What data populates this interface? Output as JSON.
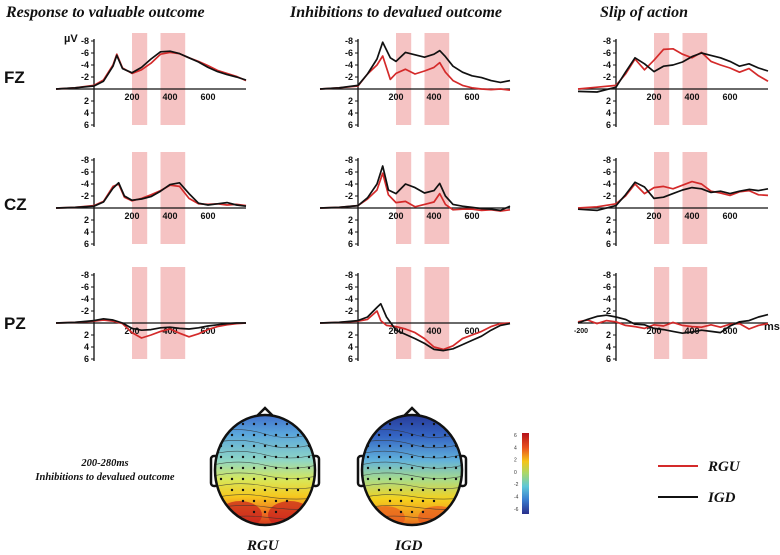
{
  "chart_data": {
    "type": "line",
    "unit_label": "µV",
    "time_unit": "ms",
    "y_range": [
      6,
      -8
    ],
    "y_ticks": [
      "-8",
      "-6",
      "-4",
      "-2",
      "2",
      "4",
      "6"
    ],
    "y_tick_values": [
      -8,
      -6,
      -4,
      -2,
      2,
      4,
      6
    ],
    "x_range": [
      -200,
      800
    ],
    "x_ticks": [
      "200",
      "400",
      "600"
    ],
    "x_tick_values": [
      200,
      400,
      600
    ],
    "x_start_label": "-200",
    "x_start_value": -200,
    "highlight_windows_ms": [
      [
        200,
        280
      ],
      [
        350,
        480
      ]
    ],
    "columns": [
      {
        "title": "Response to valuable outcome"
      },
      {
        "title": "Inhibitions to devalued outcome"
      },
      {
        "title": "Slip of action"
      }
    ],
    "rows": [
      "FZ",
      "CZ",
      "PZ"
    ],
    "series_colors": {
      "RGU": "#d42a2a",
      "IGD": "#111111"
    },
    "legend": [
      {
        "name": "RGU",
        "color": "#d42a2a"
      },
      {
        "name": "IGD",
        "color": "#111111"
      }
    ],
    "panels": [
      {
        "col": 0,
        "row": "FZ",
        "RGU": {
          "x": [
            -200,
            -100,
            0,
            50,
            100,
            120,
            150,
            200,
            250,
            300,
            350,
            400,
            450,
            500,
            550,
            600,
            650,
            700,
            750,
            800
          ],
          "y": [
            0,
            -0.2,
            -0.6,
            -1.5,
            -4,
            -5.8,
            -3.5,
            -2.6,
            -3.2,
            -4.3,
            -5.8,
            -6.1,
            -5.9,
            -5.2,
            -4.6,
            -3.9,
            -3.1,
            -2.6,
            -2.1,
            -1.4
          ]
        },
        "IGD": {
          "x": [
            -200,
            -100,
            0,
            50,
            100,
            120,
            150,
            200,
            250,
            300,
            350,
            400,
            450,
            500,
            550,
            600,
            650,
            700,
            750,
            800
          ],
          "y": [
            0,
            -0.2,
            -0.5,
            -1.3,
            -3.8,
            -5.6,
            -3.4,
            -2.7,
            -3.6,
            -5.0,
            -6.2,
            -6.3,
            -5.9,
            -5.2,
            -4.5,
            -3.6,
            -2.9,
            -2.4,
            -2.0,
            -1.5
          ]
        }
      },
      {
        "col": 1,
        "row": "FZ",
        "RGU": {
          "x": [
            -200,
            -100,
            0,
            50,
            100,
            130,
            170,
            200,
            250,
            300,
            350,
            400,
            430,
            460,
            500,
            550,
            600,
            650,
            700,
            750,
            800
          ],
          "y": [
            0,
            -0.2,
            -0.5,
            -2.5,
            -4,
            -5.5,
            -1.6,
            -2.6,
            -3.3,
            -2.5,
            -3.0,
            -3.6,
            -4.4,
            -2.8,
            -1.4,
            -0.6,
            -0.2,
            0,
            0.1,
            0,
            0.2
          ]
        },
        "IGD": {
          "x": [
            -200,
            -100,
            0,
            50,
            100,
            130,
            170,
            200,
            250,
            300,
            350,
            400,
            430,
            460,
            500,
            550,
            600,
            650,
            700,
            750,
            800
          ],
          "y": [
            0,
            -0.2,
            -0.6,
            -2.5,
            -5,
            -7.8,
            -5.2,
            -4.6,
            -6.1,
            -5.7,
            -5.3,
            -5.8,
            -6.4,
            -5.4,
            -3.8,
            -2.8,
            -2.2,
            -1.9,
            -1.4,
            -1.1,
            -1.4
          ]
        }
      },
      {
        "col": 2,
        "row": "FZ",
        "RGU": {
          "x": [
            -200,
            -100,
            0,
            50,
            100,
            150,
            200,
            250,
            300,
            350,
            400,
            450,
            500,
            550,
            600,
            650,
            700,
            750,
            800
          ],
          "y": [
            0,
            -0.3,
            -0.6,
            -2.5,
            -5,
            -3.2,
            -4.8,
            -6.6,
            -6.7,
            -5.8,
            -5.2,
            -6.1,
            -4.6,
            -4.0,
            -3.5,
            -2.8,
            -3.4,
            -2.2,
            -1.3
          ]
        },
        "IGD": {
          "x": [
            -200,
            -100,
            0,
            50,
            100,
            150,
            200,
            250,
            300,
            350,
            400,
            450,
            500,
            550,
            600,
            650,
            700,
            750,
            800
          ],
          "y": [
            0.4,
            0.5,
            -0.3,
            -2.8,
            -5.2,
            -4.2,
            -2.9,
            -3.8,
            -4.0,
            -4.5,
            -5.4,
            -6.0,
            -5.6,
            -5.2,
            -4.6,
            -3.8,
            -4.2,
            -3.5,
            -3.0
          ]
        }
      },
      {
        "col": 0,
        "row": "CZ",
        "RGU": {
          "x": [
            -200,
            -100,
            0,
            50,
            100,
            130,
            160,
            200,
            250,
            300,
            350,
            400,
            450,
            500,
            550,
            600,
            650,
            700,
            750,
            800
          ],
          "y": [
            0,
            -0.1,
            -0.4,
            -1.1,
            -3.6,
            -4.0,
            -1.8,
            -1.2,
            -1.6,
            -2.2,
            -2.9,
            -3.8,
            -3.6,
            -1.6,
            -0.7,
            -0.6,
            -0.7,
            -0.5,
            -0.6,
            -0.4
          ]
        },
        "IGD": {
          "x": [
            -200,
            -100,
            0,
            50,
            100,
            130,
            160,
            200,
            250,
            300,
            350,
            400,
            450,
            500,
            550,
            600,
            650,
            700,
            750,
            800
          ],
          "y": [
            0,
            -0.1,
            -0.3,
            -1.0,
            -3.3,
            -4.2,
            -2.0,
            -1.3,
            -1.5,
            -1.9,
            -2.8,
            -3.9,
            -4.2,
            -2.4,
            -0.8,
            -0.5,
            -0.7,
            -0.9,
            -0.5,
            -0.3
          ]
        }
      },
      {
        "col": 1,
        "row": "CZ",
        "RGU": {
          "x": [
            -200,
            -100,
            0,
            50,
            100,
            130,
            160,
            200,
            250,
            300,
            350,
            400,
            430,
            460,
            500,
            550,
            600,
            650,
            700,
            750,
            800
          ],
          "y": [
            0,
            -0.1,
            -0.4,
            -1.5,
            -3,
            -5.8,
            -2.2,
            -0.9,
            -1.1,
            -0.2,
            -0.6,
            -1.0,
            -2.4,
            -0.6,
            0.3,
            0.2,
            0.2,
            0.4,
            0.3,
            0.5,
            0.3
          ]
        },
        "IGD": {
          "x": [
            -200,
            -100,
            0,
            50,
            100,
            130,
            160,
            200,
            250,
            300,
            350,
            400,
            430,
            460,
            500,
            550,
            600,
            650,
            700,
            750,
            800
          ],
          "y": [
            0,
            -0.1,
            -0.4,
            -1.7,
            -4,
            -7.0,
            -3.0,
            -2.4,
            -4.0,
            -3.4,
            -2.5,
            -2.9,
            -4.1,
            -2.0,
            -0.6,
            -0.3,
            -0.1,
            0.1,
            0.2,
            0.4,
            -0.3
          ]
        }
      },
      {
        "col": 2,
        "row": "CZ",
        "RGU": {
          "x": [
            -200,
            -100,
            0,
            50,
            100,
            150,
            200,
            250,
            300,
            350,
            400,
            450,
            500,
            550,
            600,
            650,
            700,
            750,
            800
          ],
          "y": [
            0,
            -0.2,
            -0.7,
            -2.0,
            -4.0,
            -2.4,
            -3.4,
            -3.6,
            -3.2,
            -3.8,
            -4.4,
            -4.0,
            -2.8,
            -2.5,
            -2.1,
            -2.7,
            -2.9,
            -2.2,
            -2.1
          ]
        },
        "IGD": {
          "x": [
            -200,
            -100,
            0,
            50,
            100,
            150,
            200,
            250,
            300,
            350,
            400,
            450,
            500,
            550,
            600,
            650,
            700,
            750,
            800
          ],
          "y": [
            0.2,
            0.4,
            -0.4,
            -2.2,
            -4.3,
            -3.5,
            -1.6,
            -1.8,
            -2.4,
            -3.0,
            -3.4,
            -3.2,
            -2.6,
            -2.8,
            -2.4,
            -2.8,
            -3.1,
            -2.9,
            -3.2
          ]
        }
      },
      {
        "col": 0,
        "row": "PZ",
        "RGU": {
          "x": [
            -200,
            -100,
            0,
            50,
            100,
            150,
            200,
            250,
            300,
            350,
            400,
            450,
            500,
            550,
            600,
            650,
            700,
            750,
            800
          ],
          "y": [
            0,
            -0.1,
            -0.3,
            -0.5,
            -0.3,
            0.1,
            1.6,
            2.5,
            2.0,
            1.4,
            1.0,
            1.7,
            2.3,
            1.8,
            1.1,
            0.6,
            0.3,
            0.1,
            0
          ]
        },
        "IGD": {
          "x": [
            -200,
            -100,
            0,
            50,
            100,
            150,
            200,
            250,
            300,
            350,
            400,
            450,
            500,
            550,
            600,
            650,
            700,
            750,
            800
          ],
          "y": [
            0,
            -0.1,
            -0.4,
            -0.7,
            -0.5,
            0,
            0.9,
            1.2,
            1.1,
            0.8,
            0.7,
            0.9,
            1.0,
            0.8,
            0.5,
            0.3,
            0.1,
            0,
            0
          ]
        }
      },
      {
        "col": 1,
        "row": "PZ",
        "RGU": {
          "x": [
            -200,
            -100,
            0,
            50,
            100,
            120,
            150,
            200,
            250,
            300,
            350,
            400,
            450,
            500,
            550,
            600,
            650,
            700,
            750,
            800
          ],
          "y": [
            0,
            -0.1,
            -0.3,
            -0.6,
            -2.0,
            -0.4,
            0.4,
            0.6,
            1.0,
            1.6,
            2.6,
            4.0,
            4.4,
            3.8,
            2.6,
            2.0,
            1.4,
            0.6,
            0.1,
            0
          ]
        },
        "IGD": {
          "x": [
            -200,
            -100,
            0,
            50,
            100,
            120,
            150,
            200,
            250,
            300,
            350,
            400,
            450,
            500,
            550,
            600,
            650,
            700,
            750,
            800
          ],
          "y": [
            0,
            -0.1,
            -0.4,
            -1.0,
            -2.6,
            -3.2,
            -1.0,
            1.2,
            1.9,
            2.6,
            3.4,
            4.4,
            4.6,
            4.3,
            3.6,
            2.9,
            2.2,
            1.2,
            0.4,
            0.1
          ]
        }
      },
      {
        "col": 2,
        "row": "PZ",
        "RGU": {
          "x": [
            -200,
            -150,
            -100,
            -50,
            0,
            50,
            100,
            150,
            200,
            250,
            300,
            350,
            400,
            450,
            500,
            550,
            600,
            650,
            700,
            750,
            800
          ],
          "y": [
            -0.2,
            -0.5,
            0.1,
            -0.4,
            -0.2,
            0.4,
            0.6,
            0.9,
            0.3,
            0.5,
            -0.1,
            0.4,
            0.6,
            0.7,
            0.3,
            0.7,
            0.2,
            0.1,
            1.0,
            0.4,
            0.1
          ]
        },
        "IGD": {
          "x": [
            -200,
            -150,
            -100,
            -50,
            0,
            50,
            100,
            150,
            200,
            250,
            300,
            350,
            400,
            450,
            500,
            550,
            600,
            650,
            700,
            750,
            800
          ],
          "y": [
            0,
            -0.6,
            -1.1,
            -1.3,
            -1.0,
            -0.6,
            0.2,
            0.3,
            0.9,
            1.1,
            1.4,
            1.7,
            1.5,
            1.2,
            1.4,
            1.6,
            0.5,
            -0.2,
            -0.4,
            -1.0,
            -1.4
          ]
        }
      }
    ],
    "topomaps": {
      "window_label": "200-280ms",
      "condition_label": "Inhibitions to devalued outcome",
      "maps": [
        {
          "label": "RGU"
        },
        {
          "label": "IGD"
        }
      ],
      "colorbar_ticks": [
        "6",
        "4",
        "2",
        "0",
        "-2",
        "-4",
        "-6"
      ],
      "colorbar_range": [
        -6,
        6
      ]
    }
  }
}
